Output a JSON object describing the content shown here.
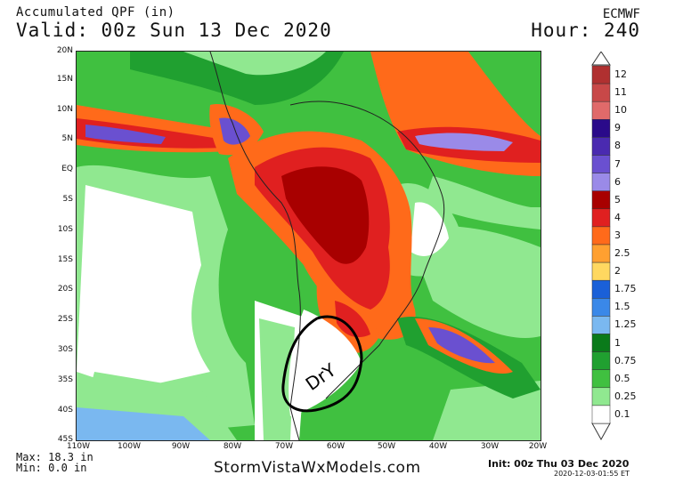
{
  "header": {
    "title": "Accumulated QPF (in)",
    "valid": "Valid: 00z Sun 13 Dec 2020",
    "model": "ECMWF",
    "hour": "Hour: 240"
  },
  "map": {
    "lat_labels": [
      "20N",
      "15N",
      "10N",
      "5N",
      "EQ",
      "5S",
      "10S",
      "15S",
      "20S",
      "25S",
      "30S",
      "35S",
      "40S",
      "45S"
    ],
    "lon_labels": [
      "110W",
      "100W",
      "90W",
      "80W",
      "70W",
      "60W",
      "50W",
      "40W",
      "30W",
      "20W"
    ],
    "annotation": "DrY"
  },
  "footer": {
    "max": "Max: 18.3 in",
    "min": "Min: 0.0 in",
    "site": "StormVistaWxModels.com",
    "init": "Init: 00z Thu 03 Dec 2020",
    "stamp": "2020-12-03-01:55 ET"
  },
  "legend": {
    "levels": [
      {
        "label": "12",
        "color": "#b03030"
      },
      {
        "label": "11",
        "color": "#c84848"
      },
      {
        "label": "10",
        "color": "#e06a6a"
      },
      {
        "label": "9",
        "color": "#2a0a8a"
      },
      {
        "label": "8",
        "color": "#4a2ab0"
      },
      {
        "label": "7",
        "color": "#6a50d0"
      },
      {
        "label": "6",
        "color": "#9a8ae8"
      },
      {
        "label": "5",
        "color": "#a80000"
      },
      {
        "label": "4",
        "color": "#e02020"
      },
      {
        "label": "3",
        "color": "#ff6a1a"
      },
      {
        "label": "2.5",
        "color": "#ffa030"
      },
      {
        "label": "2",
        "color": "#ffd860"
      },
      {
        "label": "1.75",
        "color": "#1a60d8"
      },
      {
        "label": "1.5",
        "color": "#3a88e8"
      },
      {
        "label": "1.25",
        "color": "#7ab8f0"
      },
      {
        "label": "1",
        "color": "#0a7a1a"
      },
      {
        "label": "0.75",
        "color": "#20a030"
      },
      {
        "label": "0.5",
        "color": "#40c040"
      },
      {
        "label": "0.25",
        "color": "#90e890"
      },
      {
        "label": "0.1",
        "color": "#ffffff"
      }
    ]
  }
}
